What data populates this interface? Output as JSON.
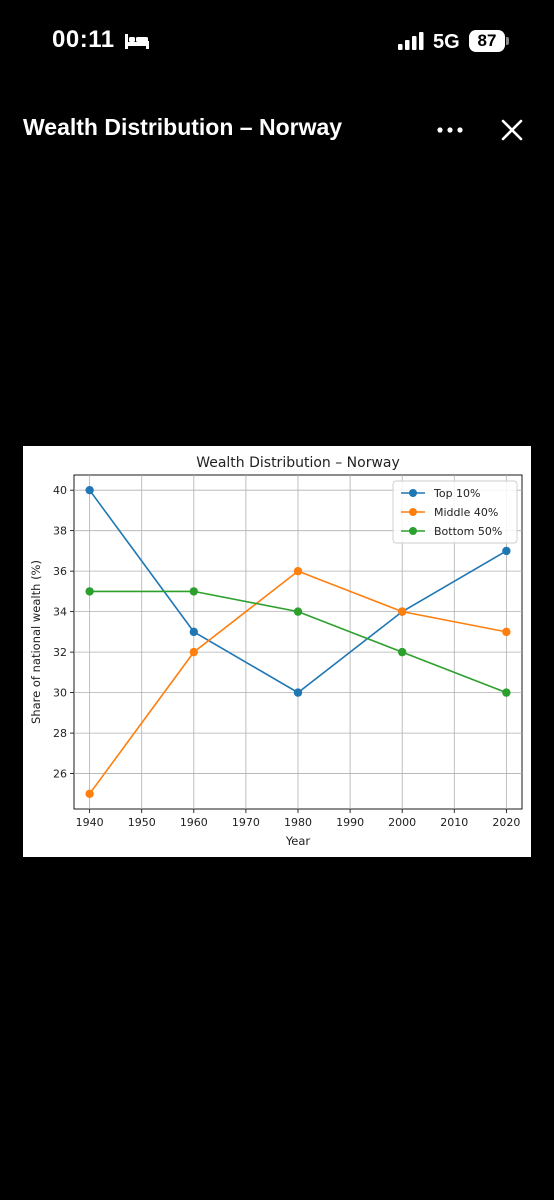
{
  "status_bar": {
    "time": "00:11",
    "sleep_icon": "bed-icon",
    "signal_icon": "cellular-signal-icon",
    "network": "5G",
    "battery": "87"
  },
  "header": {
    "title": "Wealth Distribution – Norway",
    "more_icon": "ellipsis-icon",
    "close_icon": "close-icon"
  },
  "chart_data": {
    "type": "line",
    "title": "Wealth Distribution – Norway",
    "xlabel": "Year",
    "ylabel": "Share of national wealth (%)",
    "x": [
      1940,
      1960,
      1980,
      2000,
      2020
    ],
    "xticks": [
      1940,
      1950,
      1960,
      1970,
      1980,
      1990,
      2000,
      2010,
      2020
    ],
    "yticks": [
      26,
      28,
      30,
      32,
      34,
      36,
      38,
      40
    ],
    "xlim": [
      1937,
      2023
    ],
    "ylim": [
      24.25,
      40.75
    ],
    "grid": true,
    "legend_position": "top-right",
    "series": [
      {
        "name": "Top 10%",
        "values": [
          40,
          33,
          30,
          34,
          37
        ],
        "color": "#1f77b4"
      },
      {
        "name": "Middle 40%",
        "values": [
          25,
          32,
          36,
          34,
          33
        ],
        "color": "#ff7f0e"
      },
      {
        "name": "Bottom 50%",
        "values": [
          35,
          35,
          34,
          32,
          30
        ],
        "color": "#2ca02c"
      }
    ]
  }
}
